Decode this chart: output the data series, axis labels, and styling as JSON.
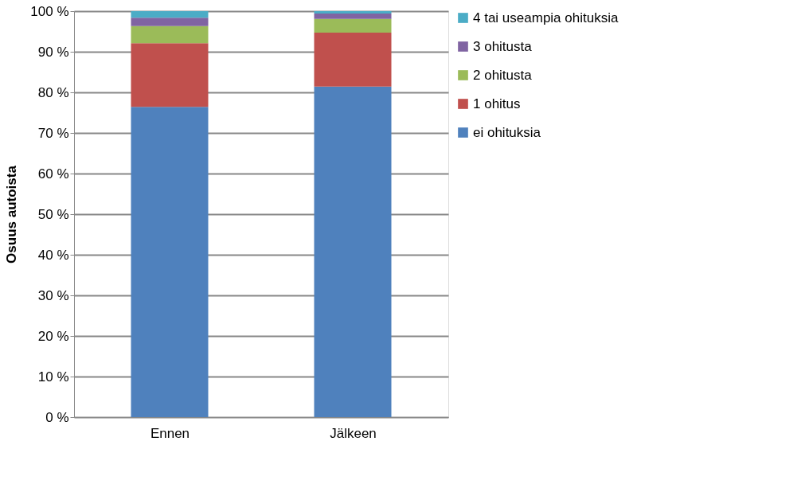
{
  "chart_data": {
    "type": "bar",
    "stacked": true,
    "ylabel": "Osuus autoista",
    "categories": [
      "Ennen",
      "Jälkeen"
    ],
    "series": [
      {
        "name": "ei ohituksia",
        "color": "#4f81bd",
        "values": [
          76.4,
          81.4
        ]
      },
      {
        "name": "1 ohitus",
        "color": "#c0504d",
        "values": [
          15.7,
          13.3
        ]
      },
      {
        "name": "2 ohitusta",
        "color": "#9bbb59",
        "values": [
          4.2,
          3.4
        ]
      },
      {
        "name": "3 ohitusta",
        "color": "#8064a2",
        "values": [
          2.1,
          1.3
        ]
      },
      {
        "name": "4 tai useampia ohituksia",
        "color": "#4bacc6",
        "values": [
          1.6,
          0.6
        ]
      }
    ],
    "ylim": [
      0,
      100
    ],
    "yticks": [
      {
        "value": 0,
        "label": "0 %"
      },
      {
        "value": 10,
        "label": "10 %"
      },
      {
        "value": 20,
        "label": "20 %"
      },
      {
        "value": 30,
        "label": "30 %"
      },
      {
        "value": 40,
        "label": "40 %"
      },
      {
        "value": 50,
        "label": "50 %"
      },
      {
        "value": 60,
        "label": "60 %"
      },
      {
        "value": 70,
        "label": "70 %"
      },
      {
        "value": 80,
        "label": "80 %"
      },
      {
        "value": 90,
        "label": "90 %"
      },
      {
        "value": 100,
        "label": "100 %"
      }
    ],
    "grid": "y",
    "legend": "right"
  }
}
